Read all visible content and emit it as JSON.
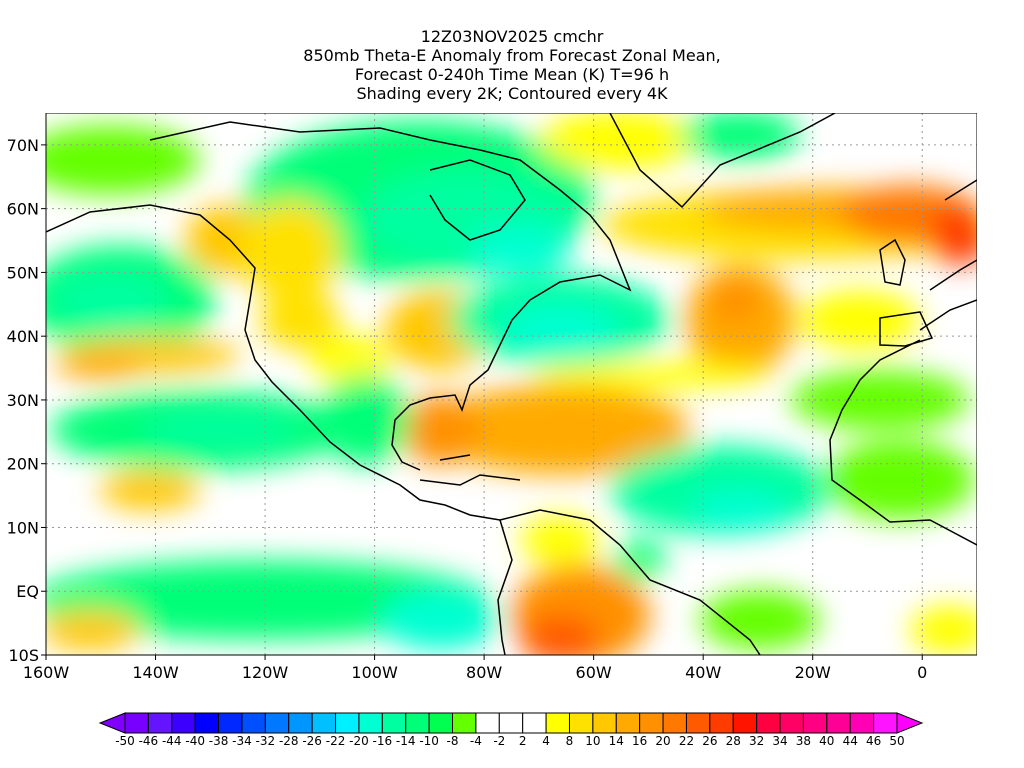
{
  "title": {
    "lines": [
      "12Z03NOV2025 cmchr",
      "850mb Theta-E Anomaly from Forecast Zonal Mean,",
      "Forecast 0-240h Time Mean (K) T=96 h",
      "Shading every 2K; Contoured every 4K"
    ]
  },
  "map": {
    "lon_range": [
      -160,
      10
    ],
    "lat_range": [
      -10,
      75
    ],
    "x_ticks": [
      {
        "lon": -160,
        "label": "160W"
      },
      {
        "lon": -140,
        "label": "140W"
      },
      {
        "lon": -120,
        "label": "120W"
      },
      {
        "lon": -100,
        "label": "100W"
      },
      {
        "lon": -80,
        "label": "80W"
      },
      {
        "lon": -60,
        "label": "60W"
      },
      {
        "lon": -40,
        "label": "40W"
      },
      {
        "lon": -20,
        "label": "20W"
      },
      {
        "lon": 0,
        "label": "0"
      }
    ],
    "y_ticks": [
      {
        "lat": 70,
        "label": "70N"
      },
      {
        "lat": 60,
        "label": "60N"
      },
      {
        "lat": 50,
        "label": "50N"
      },
      {
        "lat": 40,
        "label": "40N"
      },
      {
        "lat": 30,
        "label": "30N"
      },
      {
        "lat": 20,
        "label": "20N"
      },
      {
        "lat": 10,
        "label": "10N"
      },
      {
        "lat": 0,
        "label": "EQ"
      },
      {
        "lat": -10,
        "label": "10S"
      }
    ]
  },
  "colorbar": {
    "labels": [
      "-50",
      "-46",
      "-44",
      "-40",
      "-38",
      "-34",
      "-32",
      "-28",
      "-26",
      "-22",
      "-20",
      "-16",
      "-14",
      "-10",
      "-8",
      "-4",
      "-2",
      "2",
      "4",
      "8",
      "10",
      "14",
      "16",
      "20",
      "22",
      "26",
      "28",
      "32",
      "34",
      "38",
      "40",
      "44",
      "46",
      "50"
    ],
    "low_color": "#8000ff",
    "high_color": "#ff00ff",
    "colors": [
      "#7800ff",
      "#6414ff",
      "#3c00ff",
      "#0000ff",
      "#0028ff",
      "#0050ff",
      "#0078ff",
      "#0096ff",
      "#00c0ff",
      "#00f0ff",
      "#00ffd2",
      "#00ffa0",
      "#00ff78",
      "#00ff50",
      "#64ff00",
      "#ffffff",
      "#ffffff",
      "#ffffff",
      "#ffff00",
      "#ffe100",
      "#ffc800",
      "#ffaa00",
      "#ff9100",
      "#ff7800",
      "#ff5a00",
      "#ff3c00",
      "#ff1400",
      "#ff0040",
      "#ff0064",
      "#ff0082",
      "#ff0096",
      "#ff00b4",
      "#ff14ff"
    ]
  }
}
